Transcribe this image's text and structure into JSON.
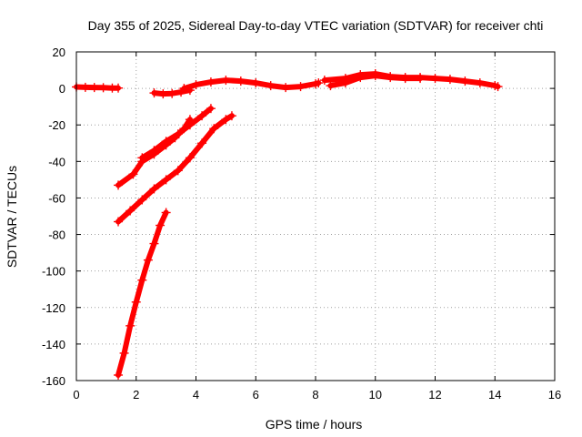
{
  "chart_data": {
    "type": "scatter",
    "title": "Day 355 of 2025, Sidereal Day-to-day VTEC variation (SDTVAR) for receiver chti",
    "xlabel": "GPS time / hours",
    "ylabel": "SDTVAR / TECUs",
    "xlim": [
      0,
      16
    ],
    "ylim": [
      -160,
      20
    ],
    "xticks": [
      0,
      2,
      4,
      6,
      8,
      10,
      12,
      14,
      16
    ],
    "yticks": [
      -160,
      -140,
      -120,
      -100,
      -80,
      -60,
      -40,
      -20,
      0,
      20
    ],
    "grid": true,
    "marker": "plus",
    "color": "#ff0000",
    "series": [
      {
        "x": [
          0.0,
          0.3,
          0.6,
          0.9,
          1.2,
          1.4
        ],
        "y": [
          0.8,
          0.6,
          0.5,
          0.4,
          0.2,
          0.2
        ]
      },
      {
        "x": [
          2.6,
          2.9,
          3.2,
          3.5,
          3.8
        ],
        "y": [
          -2.5,
          -3.0,
          -2.8,
          -2.0,
          -1.0
        ]
      },
      {
        "x": [
          3.6,
          4.0,
          4.5,
          5.0,
          5.5,
          6.0,
          6.5,
          7.0,
          7.5,
          8.0,
          8.1
        ],
        "y": [
          0.0,
          2.0,
          3.5,
          4.5,
          4.0,
          3.0,
          1.5,
          0.5,
          1.0,
          2.5,
          3.0
        ]
      },
      {
        "x": [
          8.3,
          9.0,
          9.5,
          10.0,
          10.5,
          11.0,
          11.5,
          12.0,
          12.5,
          13.0,
          13.5,
          14.0,
          14.1
        ],
        "y": [
          4.5,
          5.5,
          7.5,
          8.0,
          6.5,
          6.0,
          6.0,
          5.5,
          5.0,
          4.0,
          3.0,
          1.5,
          1.0
        ]
      },
      {
        "x": [
          8.5,
          9.0,
          9.5,
          10.0,
          10.5,
          11.0,
          11.5
        ],
        "y": [
          1.5,
          3.0,
          6.0,
          7.0,
          6.0,
          5.5,
          5.5
        ]
      },
      {
        "x": [
          1.4,
          1.9,
          2.2,
          2.6,
          3.0,
          3.3,
          3.6,
          3.8
        ],
        "y": [
          -53,
          -47,
          -40,
          -36,
          -31,
          -27,
          -22,
          -17
        ]
      },
      {
        "x": [
          2.2,
          2.6,
          3.0,
          3.4,
          3.8,
          4.2,
          4.5
        ],
        "y": [
          -38,
          -34,
          -29,
          -25,
          -20,
          -15,
          -11
        ]
      },
      {
        "x": [
          1.4,
          1.8,
          2.2,
          2.6,
          3.0,
          3.4,
          3.8,
          4.2,
          4.6,
          5.0,
          5.2
        ],
        "y": [
          -73,
          -67,
          -61,
          -55,
          -50,
          -45,
          -38,
          -30,
          -22,
          -17,
          -15
        ]
      },
      {
        "x": [
          1.4,
          1.6,
          1.8,
          2.0,
          2.2,
          2.4,
          2.6,
          2.8,
          3.0
        ],
        "y": [
          -157,
          -145,
          -130,
          -117,
          -105,
          -94,
          -85,
          -75,
          -68
        ]
      }
    ]
  }
}
